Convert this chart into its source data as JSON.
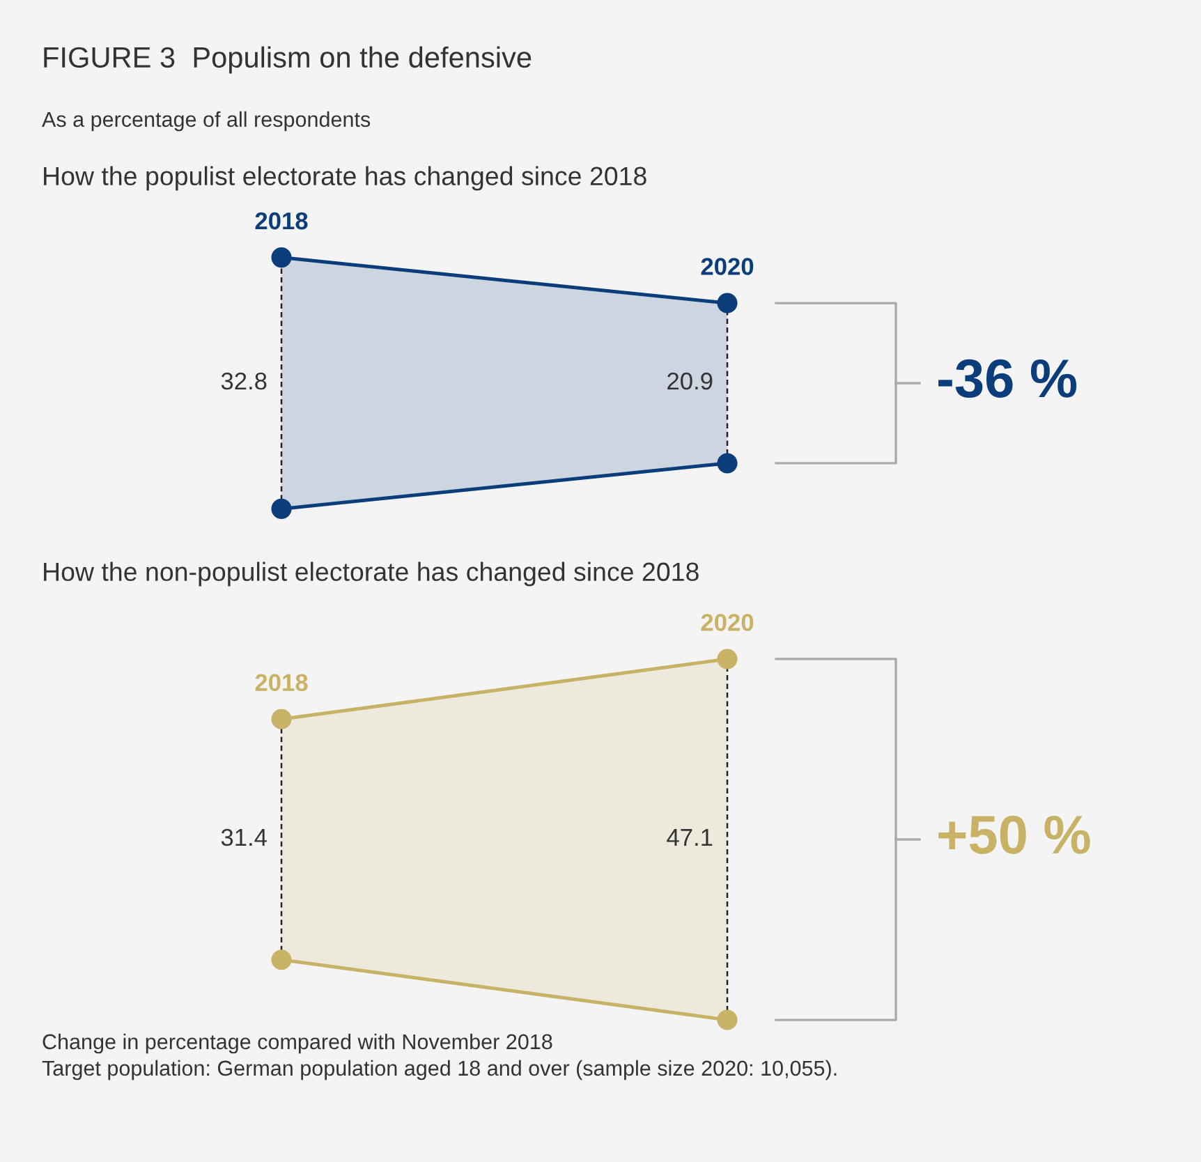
{
  "chart_data": [
    {
      "type": "other",
      "title": "FIGURE 3  Populism on the defensive",
      "subtitle": "As a percentage of all respondents",
      "categories": [
        "2018",
        "2020"
      ],
      "values": [
        32.8,
        20.9
      ],
      "color": "#0a3d7a",
      "data_labels": true,
      "annotations": [
        "How the populist electorate has changed since 2018",
        "-36 %"
      ]
    },
    {
      "type": "other",
      "categories": [
        "2018",
        "2020"
      ],
      "values": [
        31.4,
        47.1
      ],
      "color": "#c8b266",
      "data_labels": true,
      "annotations": [
        "How the non-populist electorate has changed since 2018",
        "+50 %",
        "Change in percentage compared with November 2018",
        "Target population: German population aged 18 and over (sample size 2020: 10,055)."
      ]
    }
  ]
}
